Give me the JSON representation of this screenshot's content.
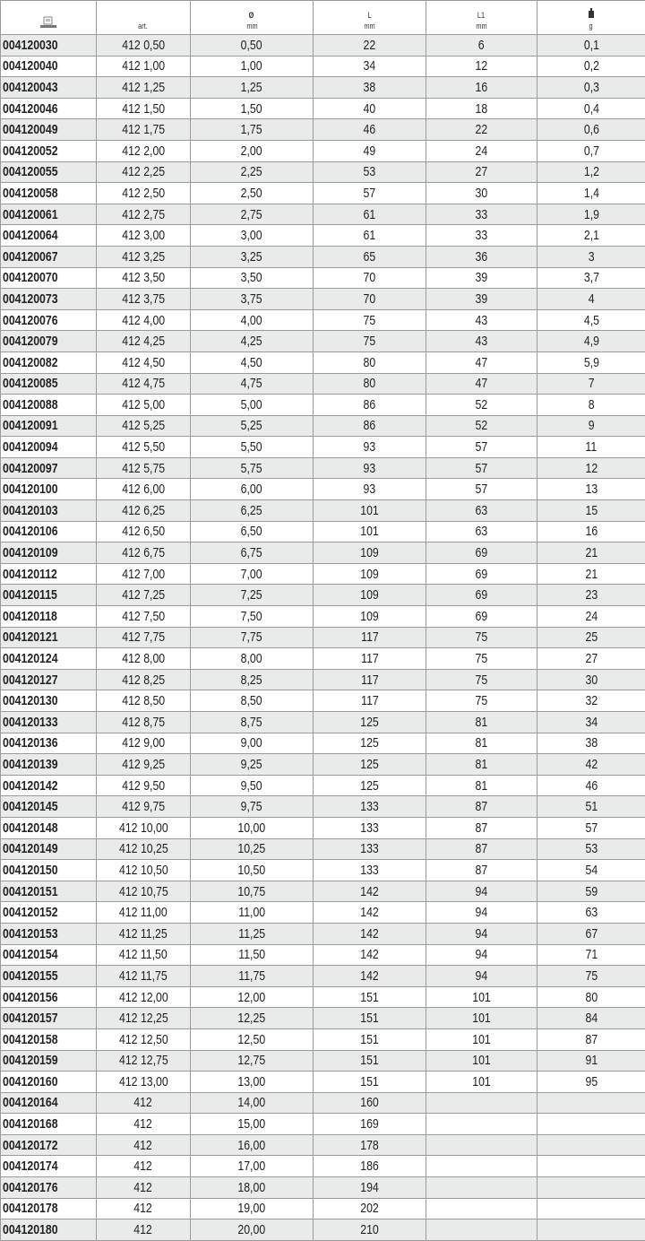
{
  "header": {
    "columns": [
      {
        "icon": "catalog-number-icon",
        "label": "",
        "unit": ""
      },
      {
        "label": "",
        "unit": "art."
      },
      {
        "label": "Ø",
        "unit": "mm"
      },
      {
        "label": "L",
        "unit": "mm"
      },
      {
        "label": "L1",
        "unit": "mm"
      },
      {
        "icon": "weight-icon",
        "label": "",
        "unit": "g"
      }
    ]
  },
  "rows": [
    [
      "004120030",
      "412 0,50",
      "0,50",
      "22",
      "6",
      "0,1"
    ],
    [
      "004120040",
      "412 1,00",
      "1,00",
      "34",
      "12",
      "0,2"
    ],
    [
      "004120043",
      "412 1,25",
      "1,25",
      "38",
      "16",
      "0,3"
    ],
    [
      "004120046",
      "412 1,50",
      "1,50",
      "40",
      "18",
      "0,4"
    ],
    [
      "004120049",
      "412 1,75",
      "1,75",
      "46",
      "22",
      "0,6"
    ],
    [
      "004120052",
      "412 2,00",
      "2,00",
      "49",
      "24",
      "0,7"
    ],
    [
      "004120055",
      "412 2,25",
      "2,25",
      "53",
      "27",
      "1,2"
    ],
    [
      "004120058",
      "412 2,50",
      "2,50",
      "57",
      "30",
      "1,4"
    ],
    [
      "004120061",
      "412 2,75",
      "2,75",
      "61",
      "33",
      "1,9"
    ],
    [
      "004120064",
      "412 3,00",
      "3,00",
      "61",
      "33",
      "2,1"
    ],
    [
      "004120067",
      "412 3,25",
      "3,25",
      "65",
      "36",
      "3"
    ],
    [
      "004120070",
      "412 3,50",
      "3,50",
      "70",
      "39",
      "3,7"
    ],
    [
      "004120073",
      "412 3,75",
      "3,75",
      "70",
      "39",
      "4"
    ],
    [
      "004120076",
      "412 4,00",
      "4,00",
      "75",
      "43",
      "4,5"
    ],
    [
      "004120079",
      "412 4,25",
      "4,25",
      "75",
      "43",
      "4,9"
    ],
    [
      "004120082",
      "412 4,50",
      "4,50",
      "80",
      "47",
      "5,9"
    ],
    [
      "004120085",
      "412 4,75",
      "4,75",
      "80",
      "47",
      "7"
    ],
    [
      "004120088",
      "412 5,00",
      "5,00",
      "86",
      "52",
      "8"
    ],
    [
      "004120091",
      "412 5,25",
      "5,25",
      "86",
      "52",
      "9"
    ],
    [
      "004120094",
      "412 5,50",
      "5,50",
      "93",
      "57",
      "11"
    ],
    [
      "004120097",
      "412 5,75",
      "5,75",
      "93",
      "57",
      "12"
    ],
    [
      "004120100",
      "412 6,00",
      "6,00",
      "93",
      "57",
      "13"
    ],
    [
      "004120103",
      "412 6,25",
      "6,25",
      "101",
      "63",
      "15"
    ],
    [
      "004120106",
      "412 6,50",
      "6,50",
      "101",
      "63",
      "16"
    ],
    [
      "004120109",
      "412 6,75",
      "6,75",
      "109",
      "69",
      "21"
    ],
    [
      "004120112",
      "412 7,00",
      "7,00",
      "109",
      "69",
      "21"
    ],
    [
      "004120115",
      "412 7,25",
      "7,25",
      "109",
      "69",
      "23"
    ],
    [
      "004120118",
      "412 7,50",
      "7,50",
      "109",
      "69",
      "24"
    ],
    [
      "004120121",
      "412 7,75",
      "7,75",
      "117",
      "75",
      "25"
    ],
    [
      "004120124",
      "412 8,00",
      "8,00",
      "117",
      "75",
      "27"
    ],
    [
      "004120127",
      "412 8,25",
      "8,25",
      "117",
      "75",
      "30"
    ],
    [
      "004120130",
      "412 8,50",
      "8,50",
      "117",
      "75",
      "32"
    ],
    [
      "004120133",
      "412 8,75",
      "8,75",
      "125",
      "81",
      "34"
    ],
    [
      "004120136",
      "412 9,00",
      "9,00",
      "125",
      "81",
      "38"
    ],
    [
      "004120139",
      "412 9,25",
      "9,25",
      "125",
      "81",
      "42"
    ],
    [
      "004120142",
      "412 9,50",
      "9,50",
      "125",
      "81",
      "46"
    ],
    [
      "004120145",
      "412 9,75",
      "9,75",
      "133",
      "87",
      "51"
    ],
    [
      "004120148",
      "412 10,00",
      "10,00",
      "133",
      "87",
      "57"
    ],
    [
      "004120149",
      "412 10,25",
      "10,25",
      "133",
      "87",
      "53"
    ],
    [
      "004120150",
      "412 10,50",
      "10,50",
      "133",
      "87",
      "54"
    ],
    [
      "004120151",
      "412 10,75",
      "10,75",
      "142",
      "94",
      "59"
    ],
    [
      "004120152",
      "412 11,00",
      "11,00",
      "142",
      "94",
      "63"
    ],
    [
      "004120153",
      "412 11,25",
      "11,25",
      "142",
      "94",
      "67"
    ],
    [
      "004120154",
      "412 11,50",
      "11,50",
      "142",
      "94",
      "71"
    ],
    [
      "004120155",
      "412 11,75",
      "11,75",
      "142",
      "94",
      "75"
    ],
    [
      "004120156",
      "412 12,00",
      "12,00",
      "151",
      "101",
      "80"
    ],
    [
      "004120157",
      "412 12,25",
      "12,25",
      "151",
      "101",
      "84"
    ],
    [
      "004120158",
      "412 12,50",
      "12,50",
      "151",
      "101",
      "87"
    ],
    [
      "004120159",
      "412 12,75",
      "12,75",
      "151",
      "101",
      "91"
    ],
    [
      "004120160",
      "412 13,00",
      "13,00",
      "151",
      "101",
      "95"
    ],
    [
      "004120164",
      "412",
      "14,00",
      "160",
      "",
      ""
    ],
    [
      "004120168",
      "412",
      "15,00",
      "169",
      "",
      ""
    ],
    [
      "004120172",
      "412",
      "16,00",
      "178",
      "",
      ""
    ],
    [
      "004120174",
      "412",
      "17,00",
      "186",
      "",
      ""
    ],
    [
      "004120176",
      "412",
      "18,00",
      "194",
      "",
      ""
    ],
    [
      "004120178",
      "412",
      "19,00",
      "202",
      "",
      ""
    ],
    [
      "004120180",
      "412",
      "20,00",
      "210",
      "",
      ""
    ]
  ]
}
